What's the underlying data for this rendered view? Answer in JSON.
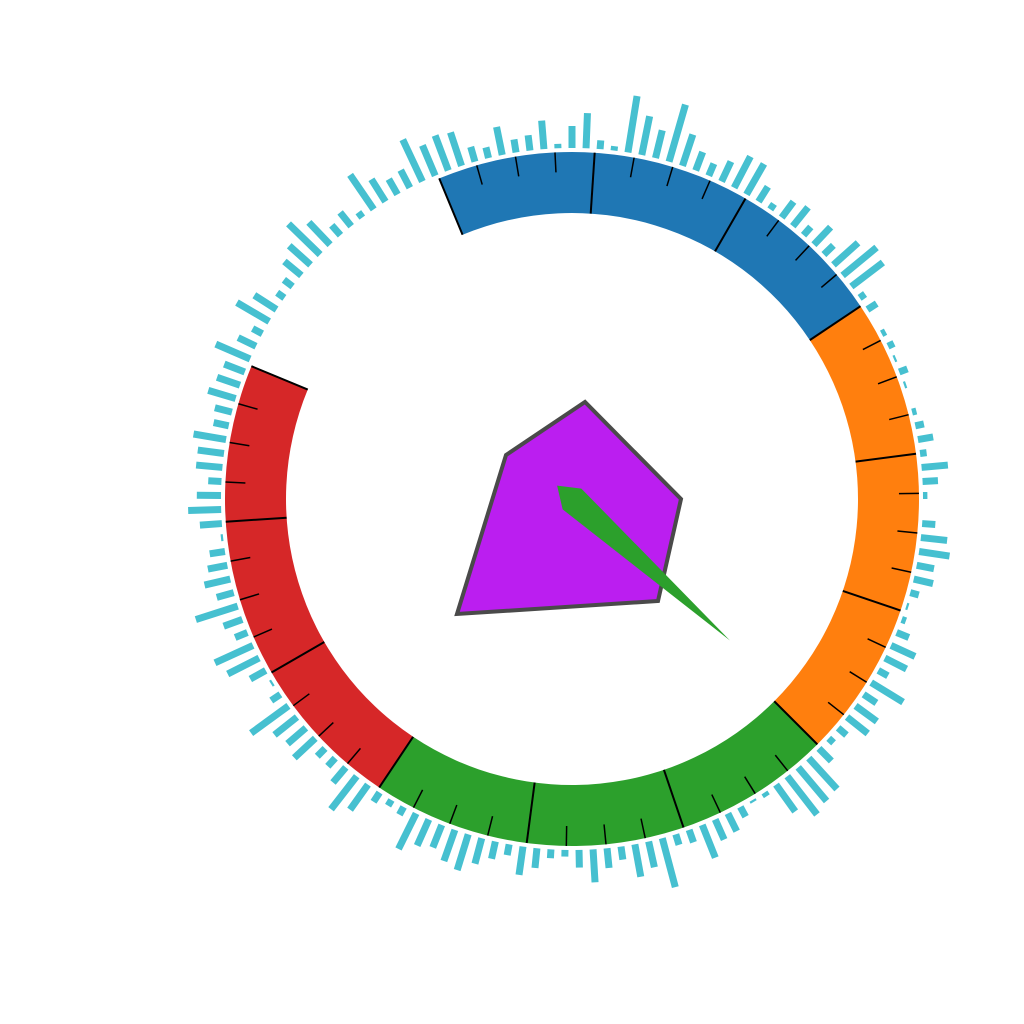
{
  "chart_data": {
    "type": "gauge",
    "title": "",
    "range": [
      0,
      1
    ],
    "needle_value": 0.49,
    "needle_color": "#2ca02c",
    "bands": [
      {
        "from": 0.0,
        "to": 0.25,
        "color": "#1f77b4"
      },
      {
        "from": 0.25,
        "to": 0.5,
        "color": "#ff7f0e"
      },
      {
        "from": 0.5,
        "to": 0.75,
        "color": "#2ca02c"
      },
      {
        "from": 0.75,
        "to": 1.0,
        "color": "#d62728"
      }
    ],
    "polygon": {
      "fill": "#bb1ef0",
      "stroke": "#4a4a4a"
    },
    "radial_bars": {
      "color": "#46c0d0",
      "lengths": [
        1.0,
        1.6,
        0.4,
        0.2,
        2.6,
        1.8,
        1.3,
        2.7,
        1.5,
        0.9,
        0.6,
        1.0,
        1.6,
        1.6,
        0.8,
        0.3,
        0.9,
        1.1,
        0.5,
        1.1,
        0.6,
        1.5,
        2.0,
        1.8,
        0.3,
        0.5,
        0.0,
        0.2,
        0.3,
        0.1,
        0.4,
        0.1,
        0.0,
        0.2,
        0.4,
        0.7,
        0.3,
        1.2,
        0.7,
        0.2,
        0.0,
        0.6,
        1.2,
        1.4,
        0.8,
        0.9,
        0.4,
        0.1,
        0.2,
        0.6,
        1.2,
        1.1,
        0.5,
        1.7,
        0.7,
        1.2,
        1.2,
        0.5,
        0.3,
        0.8,
        1.9,
        2.0,
        2.2,
        1.5,
        0.2,
        0.1,
        0.5,
        0.9,
        1.0,
        1.6,
        0.6,
        0.5,
        2.3,
        1.2,
        1.5,
        0.6,
        0.9,
        1.5,
        0.8,
        0.3,
        0.4,
        0.9,
        1.3,
        0.5,
        0.8,
        1.2,
        1.7,
        1.5,
        1.1,
        1.3,
        1.8,
        0.4,
        0.3,
        0.5,
        1.4,
        1.9,
        0.9,
        0.5,
        0.5,
        1.3,
        1.1,
        1.3,
        2.1,
        0.5,
        0.1,
        0.8,
        1.6,
        1.9,
        0.6,
        0.9,
        2.0,
        0.8,
        1.2,
        0.9,
        0.7,
        0.1,
        1.0,
        1.5,
        1.1,
        0.6,
        1.2,
        1.2,
        1.5,
        0.7,
        0.8,
        1.3,
        1.1,
        1.0,
        1.7,
        0.9,
        0.5,
        1.7,
        1.2,
        0.4,
        0.5,
        1.0,
        1.3,
        2.0,
        1.4,
        0.6,
        0.8,
        0.3,
        1.9,
        1.2,
        0.8,
        0.9,
        2.1,
        1.5,
        1.7,
        1.6,
        0.7,
        0.5,
        1.3,
        0.6,
        0.7,
        1.3,
        0.2
      ]
    }
  }
}
